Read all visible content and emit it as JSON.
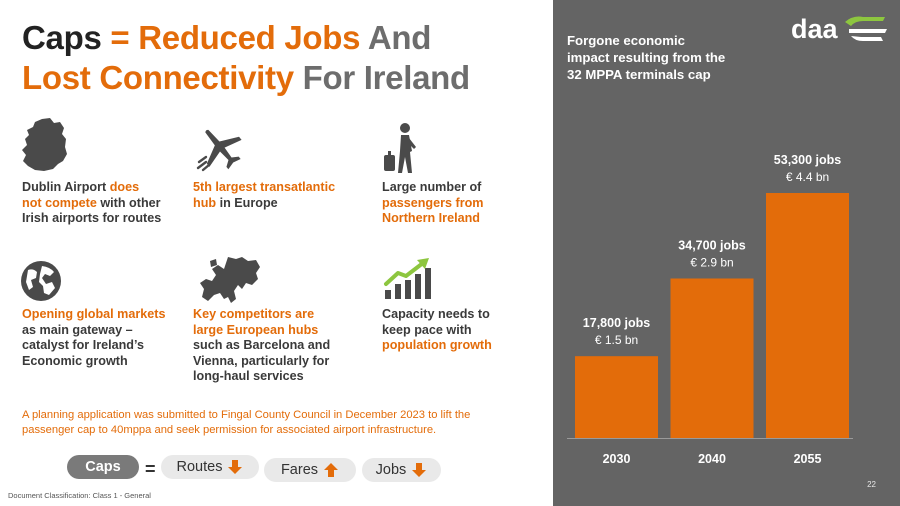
{
  "title": {
    "w1": "Caps",
    "w2": "=",
    "w3": "Reduced Jobs",
    "w4": "And",
    "w5": "Lost Connectivity",
    "w6": "For Ireland"
  },
  "features": [
    {
      "icon": "ireland-map-icon",
      "parts": [
        [
          "Dublin Airport ",
          false
        ],
        [
          "does not compete",
          true
        ],
        [
          " with other Irish airports for routes",
          false
        ]
      ]
    },
    {
      "icon": "airplane-icon",
      "parts": [
        [
          "5th largest transatlantic hub",
          true
        ],
        [
          " in Europe",
          false
        ]
      ]
    },
    {
      "icon": "traveller-icon",
      "parts": [
        [
          "Large number of ",
          false
        ],
        [
          "passengers from Northern Ireland",
          true
        ]
      ]
    },
    {
      "icon": "globe-icon",
      "parts": [
        [
          "Opening global markets",
          true
        ],
        [
          " as main gateway – catalyst for Ireland’s Economic growth",
          false
        ]
      ]
    },
    {
      "icon": "europe-map-icon",
      "parts": [
        [
          "Key competitors are large European hubs",
          true
        ],
        [
          " such as Barcelona and Vienna, particularly for long-haul services",
          false
        ]
      ]
    },
    {
      "icon": "growth-chart-icon",
      "parts": [
        [
          "Capacity needs to keep pace with ",
          false
        ],
        [
          "population growth",
          true
        ]
      ]
    }
  ],
  "note": "A planning application was submitted to Fingal County Council in December 2023 to lift the passenger cap to 40mppa and seek permission for associated airport infrastructure.",
  "equation": {
    "caps": "Caps",
    "equals": "=",
    "items": [
      {
        "label": "Routes",
        "direction": "down"
      },
      {
        "label": "Fares",
        "direction": "up"
      },
      {
        "label": "Jobs",
        "direction": "down"
      }
    ]
  },
  "footer": "Document Classification:  Class 1 - General",
  "panel": {
    "title": "Forgone economic impact resulting from the 32 MPPA terminals cap",
    "logo_text": "daa",
    "page_number": "22"
  },
  "colors": {
    "orange": "#e36c0a",
    "panel_gray": "#646464",
    "bar_orange": "#e36c0a",
    "logo_green": "#8dc63f"
  },
  "chart_data": {
    "type": "bar",
    "categories": [
      "2030",
      "2040",
      "2055"
    ],
    "values": [
      17800,
      34700,
      53300
    ],
    "labels_jobs": [
      "17,800 jobs",
      "34,700 jobs",
      "53,300 jobs"
    ],
    "labels_value": [
      "€ 1.5 bn",
      "€ 2.9 bn",
      "€ 4.4 bn"
    ],
    "title": "Forgone economic impact resulting from the 32 MPPA terminals cap",
    "xlabel": "",
    "ylabel": "",
    "ylim": [
      0,
      53300
    ],
    "grid": false,
    "legend": "none"
  }
}
